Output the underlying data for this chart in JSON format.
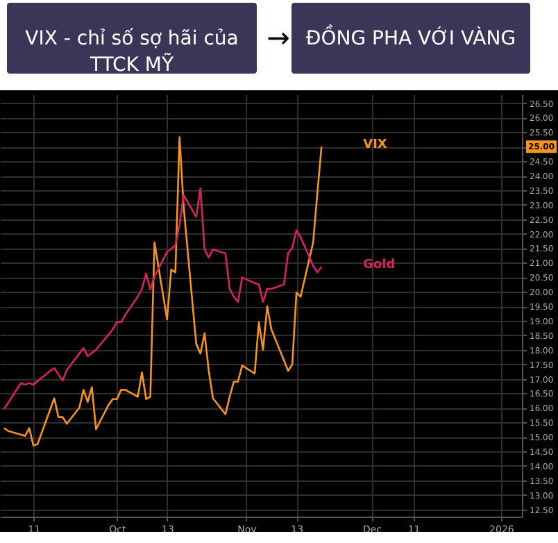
{
  "chart_data": {
    "type": "line",
    "annotations": [
      "VIX - chỉ số sợ hãi của TTCK MỸ",
      "→",
      "ĐỒNG PHA VỚI VÀNG",
      "25.00"
    ],
    "series": [
      {
        "name": "VIX",
        "color": "#f7941d",
        "x": [
          "2025-09-04",
          "2025-09-05",
          "2025-09-09",
          "2025-09-10",
          "2025-09-11",
          "2025-09-12",
          "2025-09-16",
          "2025-09-17",
          "2025-09-18",
          "2025-09-19",
          "2025-09-22",
          "2025-09-23",
          "2025-09-24",
          "2025-09-25",
          "2025-09-26",
          "2025-09-29",
          "2025-09-30",
          "2025-10-01",
          "2025-10-02",
          "2025-10-03",
          "2025-10-06",
          "2025-10-07",
          "2025-10-08",
          "2025-10-09",
          "2025-10-10",
          "2025-10-13",
          "2025-10-14",
          "2025-10-15",
          "2025-10-16",
          "2025-10-17",
          "2025-10-20",
          "2025-10-21",
          "2025-10-22",
          "2025-10-23",
          "2025-10-24",
          "2025-10-27",
          "2025-10-28",
          "2025-10-29",
          "2025-10-30",
          "2025-10-31",
          "2025-11-03",
          "2025-11-04",
          "2025-11-05",
          "2025-11-06",
          "2025-11-07",
          "2025-11-10",
          "2025-11-11",
          "2025-11-12",
          "2025-11-13",
          "2025-11-14",
          "2025-11-17",
          "2025-11-18",
          "2025-11-19"
        ],
        "values": [
          15.3,
          15.2,
          15.03,
          15.3,
          14.7,
          14.75,
          16.33,
          15.68,
          15.68,
          15.45,
          16.0,
          16.62,
          16.2,
          16.71,
          15.26,
          16.1,
          16.3,
          16.3,
          16.62,
          16.62,
          16.38,
          17.22,
          16.3,
          16.38,
          21.7,
          19.05,
          20.76,
          20.67,
          25.33,
          22.9,
          18.2,
          17.87,
          18.57,
          17.27,
          16.33,
          15.78,
          16.38,
          16.9,
          16.9,
          17.46,
          17.18,
          18.95,
          18.0,
          19.5,
          18.7,
          17.64,
          17.27,
          17.5,
          19.97,
          19.83,
          21.7,
          23.38,
          25.0
        ]
      },
      {
        "name": "Gold",
        "color": "#d6245e",
        "x": [
          "2025-09-04",
          "2025-09-08",
          "2025-09-09",
          "2025-09-10",
          "2025-09-11",
          "2025-09-15",
          "2025-09-16",
          "2025-09-18",
          "2025-09-19",
          "2025-09-22",
          "2025-09-23",
          "2025-09-24",
          "2025-09-26",
          "2025-09-30",
          "2025-10-01",
          "2025-10-02",
          "2025-10-03",
          "2025-10-06",
          "2025-10-07",
          "2025-10-08",
          "2025-10-09",
          "2025-10-10",
          "2025-10-13",
          "2025-10-15",
          "2025-10-16",
          "2025-10-17",
          "2025-10-20",
          "2025-10-21",
          "2025-10-22",
          "2025-10-23",
          "2025-10-24",
          "2025-10-27",
          "2025-10-28",
          "2025-10-29",
          "2025-10-30",
          "2025-10-31",
          "2025-11-03",
          "2025-11-04",
          "2025-11-05",
          "2025-11-06",
          "2025-11-07",
          "2025-11-10",
          "2025-11-11",
          "2025-11-12",
          "2025-11-13",
          "2025-11-14",
          "2025-11-17",
          "2025-11-18",
          "2025-11-19"
        ],
        "values": [
          15.96,
          16.85,
          16.8,
          16.85,
          16.8,
          17.27,
          17.36,
          16.94,
          17.3,
          17.87,
          18.06,
          17.78,
          18.0,
          18.7,
          18.95,
          18.95,
          19.2,
          19.83,
          20.1,
          20.63,
          20.07,
          20.53,
          21.37,
          21.6,
          22.3,
          23.33,
          22.58,
          23.56,
          21.46,
          21.18,
          21.46,
          21.32,
          20.1,
          19.83,
          19.65,
          20.49,
          20.3,
          20.25,
          19.65,
          20.1,
          20.1,
          20.25,
          21.33,
          21.51,
          22.12,
          21.88,
          20.9,
          20.67,
          20.86
        ]
      }
    ],
    "xlim": [
      "2025-09-03",
      "2026-01-06"
    ],
    "xticks": [
      {
        "value": "2025-09-11",
        "label": "11"
      },
      {
        "value": "2025-10-01",
        "label": "Oct"
      },
      {
        "value": "2025-10-13",
        "label": "13"
      },
      {
        "value": "2025-11-01",
        "label": "Nov"
      },
      {
        "value": "2025-11-13",
        "label": "13"
      },
      {
        "value": "2025-12-01",
        "label": "Dec"
      },
      {
        "value": "2025-12-11",
        "label": "11"
      },
      {
        "value": "2026-01-01",
        "label": "2026"
      }
    ],
    "ylim": [
      12.25,
      26.8
    ],
    "yticks": [
      {
        "value": 12.5,
        "label": "12.50"
      },
      {
        "value": 13,
        "label": "13.00"
      },
      {
        "value": 13.5,
        "label": "13.50"
      },
      {
        "value": 14,
        "label": "14.00"
      },
      {
        "value": 14.5,
        "label": "14.50"
      },
      {
        "value": 15,
        "label": "15.00"
      },
      {
        "value": 15.5,
        "label": "15.50"
      },
      {
        "value": 16,
        "label": "16.00"
      },
      {
        "value": 16.5,
        "label": "16.50"
      },
      {
        "value": 17,
        "label": "17.00"
      },
      {
        "value": 17.5,
        "label": "17.50"
      },
      {
        "value": 18,
        "label": "18.00"
      },
      {
        "value": 18.5,
        "label": "18.50"
      },
      {
        "value": 19,
        "label": "19.00"
      },
      {
        "value": 19.5,
        "label": "19.50"
      },
      {
        "value": 20,
        "label": "20.00"
      },
      {
        "value": 20.5,
        "label": "20.50"
      },
      {
        "value": 21,
        "label": "21.00"
      },
      {
        "value": 21.5,
        "label": "21.50"
      },
      {
        "value": 22,
        "label": "22.00"
      },
      {
        "value": 22.5,
        "label": "22.50"
      },
      {
        "value": 23,
        "label": "23.00"
      },
      {
        "value": 23.5,
        "label": "23.50"
      },
      {
        "value": 24,
        "label": "24.00"
      },
      {
        "value": 24.5,
        "label": "24.50"
      },
      {
        "value": 25,
        "label": null
      },
      {
        "value": 25.5,
        "label": "25.50"
      },
      {
        "value": 26,
        "label": "26.00"
      },
      {
        "value": 26.5,
        "label": "26.50"
      }
    ],
    "grid": true,
    "legend": false,
    "marker": "none",
    "line_style": "solid"
  }
}
